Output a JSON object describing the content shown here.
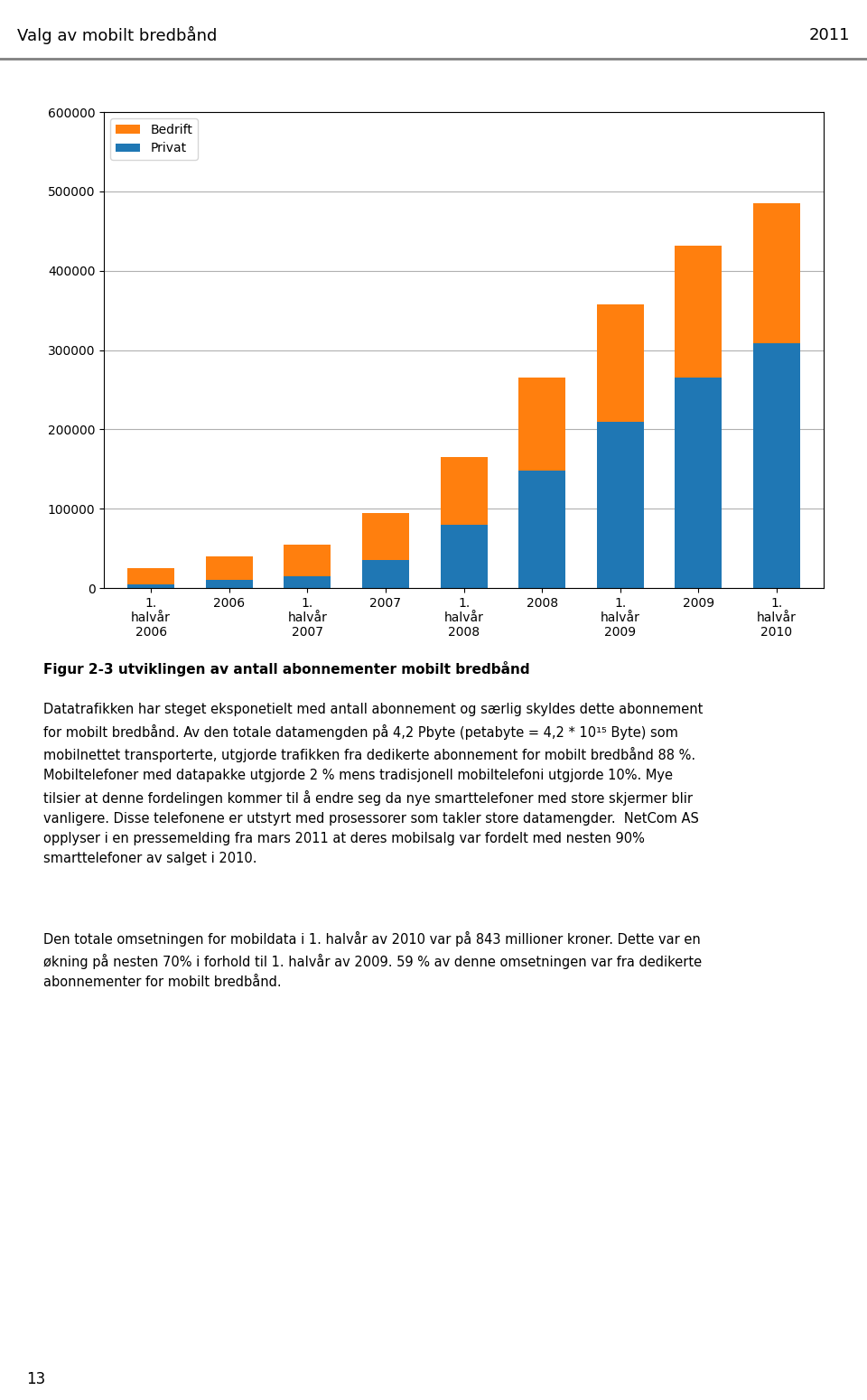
{
  "chart_data": {
    "type": "bar",
    "stacked": true,
    "title": "Figur 2-3 utviklingen av antall abonnementer mobilt bredbånd",
    "categories": [
      "1.\nhalvår\n2006",
      "2006",
      "1.\nhalvår\n2007",
      "2007",
      "1.\nhalvår\n2008",
      "2008",
      "1.\nhalvår\n2009",
      "2009",
      "1.\nhalvår\n2010"
    ],
    "series": [
      {
        "name": "Privat",
        "values": [
          5000,
          10000,
          15000,
          35000,
          80000,
          148000,
          210000,
          265000,
          308000
        ]
      },
      {
        "name": "Bedrift",
        "values": [
          20000,
          30000,
          40000,
          60000,
          85000,
          117000,
          148000,
          167000,
          177000
        ]
      }
    ],
    "ylim": [
      0,
      600000
    ],
    "yticks": [
      0,
      100000,
      200000,
      300000,
      400000,
      500000,
      600000
    ],
    "grid": true,
    "legend": "upper left",
    "annotations": [
      "Valg av mobilt bredbånd",
      "2011",
      "Datatrafikken har steget eksponetielt med antall abonnement og særlig skyldes dette abonnement\nfor mobilt bredbånd. Av den totale datamengden på 4,2 Pbyte (petabyte = 4,2 * 10¹⁵ Byte) som\nmobilnettet transporterte, utgjorde trafikken fra dedikerte abonnement for mobilt bredbånd 88 %.\nMobiltelefoner med datapakke utgjorde 2 % mens tradisjonell mobiltelefoni utgjorde 10%. Mye\ntilsier at denne fordelingen kommer til å endre seg da nye smarttelefoner med store skjermer blir\nvanligere. Disse telefonene er utstyrt med prosessorer som takler store datamengder.  NetCom AS\nopplyser i en pressemelding fra mars 2011 at deres mobilsalg var fordelt med nesten 90%\nsmarttelefoner av salget i 2010.",
      "Den totale omsetningen for mobildata i 1. halvår av 2010 var på 843 millioner kroner. Dette var en\nøkning på nesten 70% i forhold til 1. halvår av 2009. 59 % av denne omsetningen var fra dedikerte\nabonnementer for mobilt bredbånd.",
      "13"
    ]
  }
}
